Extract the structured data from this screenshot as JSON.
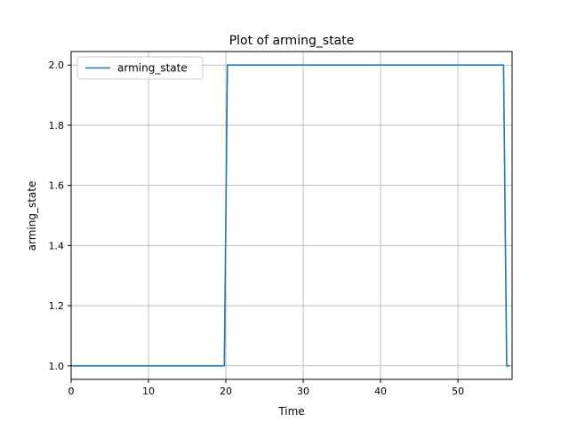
{
  "chart_data": {
    "type": "line",
    "title": "Plot of arming_state",
    "xlabel": "Time",
    "ylabel": "arming_state",
    "xlim": [
      0,
      57
    ],
    "ylim": [
      0.955,
      2.045
    ],
    "xticks": [
      0,
      10,
      20,
      30,
      40,
      50
    ],
    "yticks": [
      1.0,
      1.2,
      1.4,
      1.6,
      1.8,
      2.0
    ],
    "xtick_labels": [
      "0",
      "10",
      "20",
      "30",
      "40",
      "50"
    ],
    "ytick_labels": [
      "1.0",
      "1.2",
      "1.4",
      "1.6",
      "1.8",
      "2.0"
    ],
    "grid": true,
    "legend_position": "top-left",
    "series": [
      {
        "name": "arming_state",
        "color": "#1f77b4",
        "x": [
          0,
          19.8,
          20.2,
          55.9,
          56.3,
          56.7
        ],
        "y": [
          1,
          1,
          2,
          2,
          1,
          1
        ]
      }
    ]
  }
}
